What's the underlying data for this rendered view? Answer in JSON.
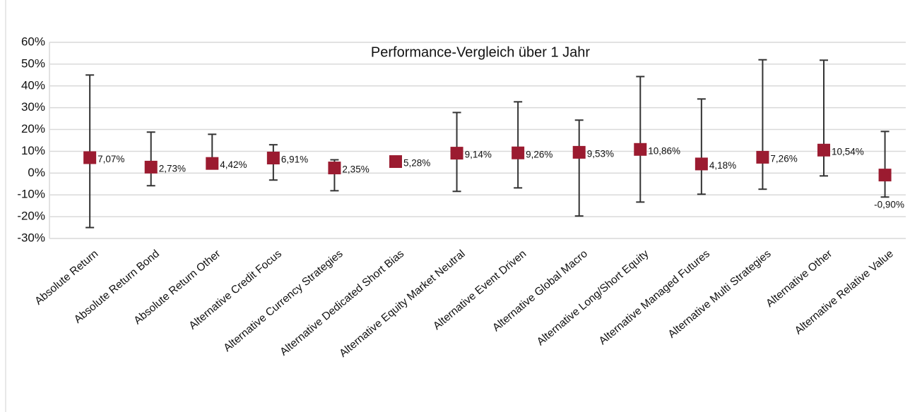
{
  "chart_data": {
    "type": "errorbar",
    "title": "Performance-Vergleich über 1 Jahr",
    "categories": [
      "Absolute Return",
      "Absolute Return Bond",
      "Absolute Return Other",
      "Alternative Credit Focus",
      "Alternative Currency Strategies",
      "Alternative Dedicated Short Bias",
      "Alternative Equity Market Neutral",
      "Alternative Event Driven",
      "Alternative Global Macro",
      "Alternative Long/Short Equity",
      "Alternative Managed Futures",
      "Alternative Multi Strategies",
      "Alternative Other",
      "Alternative Relative Value"
    ],
    "values": [
      7.07,
      2.73,
      4.42,
      6.91,
      2.35,
      5.28,
      9.14,
      9.26,
      9.53,
      10.86,
      4.18,
      7.26,
      10.54,
      -0.9
    ],
    "value_labels": [
      "7,07%",
      "2,73%",
      "4,42%",
      "6,91%",
      "2,35%",
      "5,28%",
      "9,14%",
      "9,26%",
      "9,53%",
      "10,86%",
      "4,18%",
      "7,26%",
      "10,54%",
      "-0,90%"
    ],
    "highs": [
      45,
      18.8,
      17.8,
      13,
      6.1,
      6.5,
      27.8,
      32.7,
      24.3,
      44.3,
      34,
      52,
      51.8,
      19.1
    ],
    "lows": [
      -25,
      -5.8,
      2,
      -3.2,
      -8.1,
      4,
      -8.4,
      -6.8,
      -19.7,
      -13.3,
      -9.7,
      -7.4,
      -1.3,
      -11
    ],
    "color": "#9b1b30",
    "bar_color": "#333333",
    "ylim": [
      -30,
      60
    ],
    "yticks": [
      {
        "value": -30,
        "label": "-30%"
      },
      {
        "value": -20,
        "label": "-20%"
      },
      {
        "value": -10,
        "label": "-10%"
      },
      {
        "value": 0,
        "label": "0%"
      },
      {
        "value": 10,
        "label": "10%"
      },
      {
        "value": 20,
        "label": "20%"
      },
      {
        "value": 30,
        "label": "30%"
      },
      {
        "value": 40,
        "label": "40%"
      },
      {
        "value": 50,
        "label": "50%"
      },
      {
        "value": 60,
        "label": "60%"
      }
    ],
    "grid": true
  }
}
